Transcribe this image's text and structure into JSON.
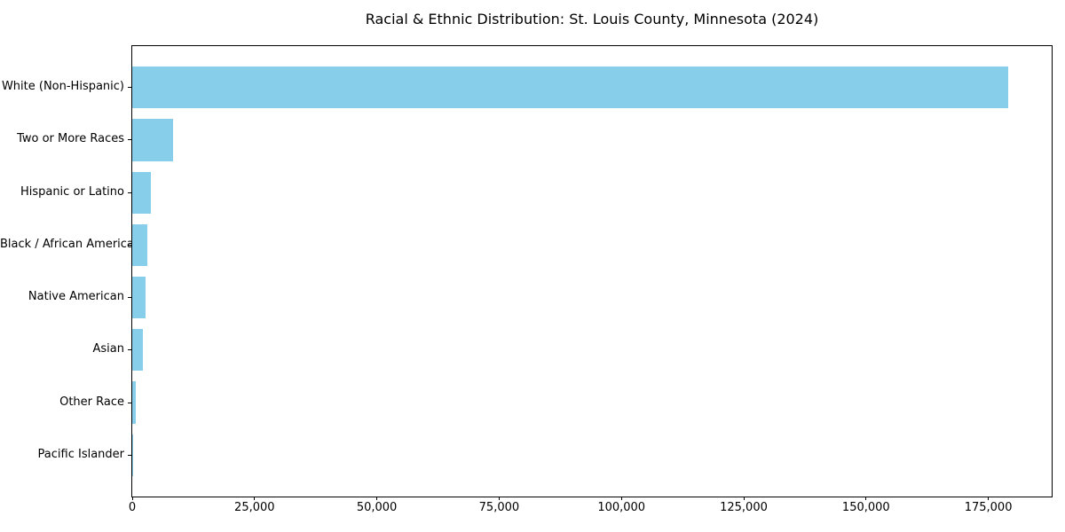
{
  "chart_data": {
    "type": "bar",
    "orientation": "horizontal",
    "title": "Racial & Ethnic Distribution: St. Louis County, Minnesota (2024)",
    "xlabel": "",
    "ylabel": "",
    "categories": [
      "White (Non-Hispanic)",
      "Two or More Races",
      "Hispanic or Latino",
      "Black / African American",
      "Native American",
      "Asian",
      "Other Race",
      "Pacific Islander"
    ],
    "values": [
      179000,
      8300,
      3800,
      3000,
      2700,
      2100,
      700,
      60
    ],
    "bar_color": "#87ceeb",
    "xlim": [
      0,
      187950
    ],
    "bar_height_frac": 0.8,
    "grid": false,
    "legend": null,
    "x_ticks": [
      {
        "value": 0,
        "label": "0"
      },
      {
        "value": 25000,
        "label": "25,000"
      },
      {
        "value": 50000,
        "label": "50,000"
      },
      {
        "value": 75000,
        "label": "75,000"
      },
      {
        "value": 100000,
        "label": "100,000"
      },
      {
        "value": 125000,
        "label": "125,000"
      },
      {
        "value": 150000,
        "label": "150,000"
      },
      {
        "value": 175000,
        "label": "175,000"
      }
    ]
  }
}
